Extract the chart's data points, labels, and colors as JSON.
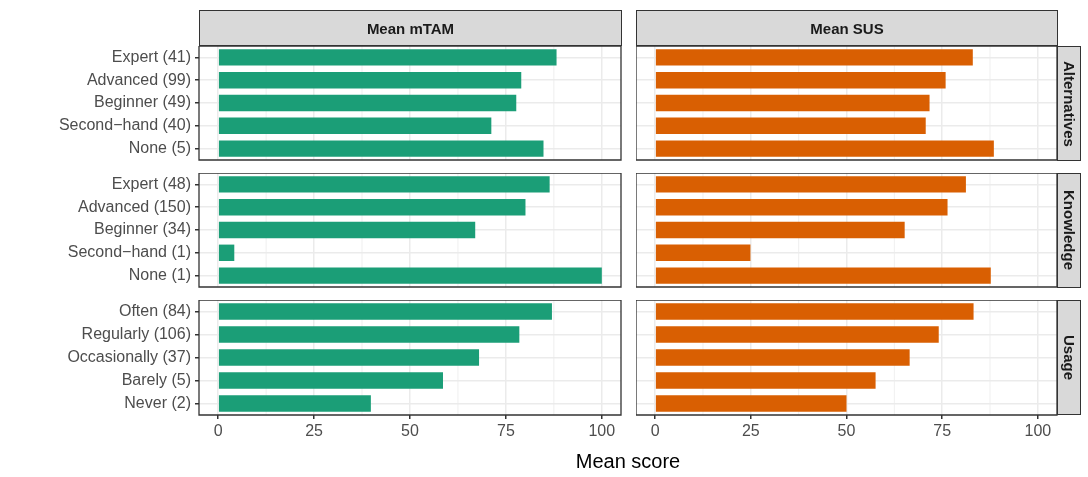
{
  "chart_data": [
    {
      "type": "bar",
      "orientation": "horizontal",
      "title": "Mean mTAM",
      "categories": [
        "Expert (41)",
        "Advanced (99)",
        "Beginner (49)",
        "Second−hand (40)",
        "None (5)"
      ],
      "values": [
        88.2,
        79,
        77.7,
        71.2,
        84.8
      ],
      "color": "#1b9e77",
      "xlim": [
        -5,
        105
      ],
      "xticks": [
        0,
        25,
        50,
        75,
        100
      ],
      "grid": true,
      "tick_labels": "y"
    },
    {
      "type": "bar",
      "orientation": "horizontal",
      "title": "Mean SUS",
      "y2label": "Alternatives",
      "categories": [
        "Expert (41)",
        "Advanced (99)",
        "Beginner (49)",
        "Second−hand (40)",
        "None (5)"
      ],
      "values": [
        83,
        75.9,
        71.7,
        70.7,
        88.5
      ],
      "color": "#d95f02",
      "xlim": [
        -5,
        105
      ],
      "xticks": [
        0,
        25,
        50,
        75,
        100
      ],
      "grid": true,
      "tick_labels": false
    },
    {
      "type": "bar",
      "orientation": "horizontal",
      "categories": [
        "Expert (48)",
        "Advanced (150)",
        "Beginner (34)",
        "Second−hand (1)",
        "None (1)"
      ],
      "values": [
        86.4,
        80.1,
        67,
        4.2,
        100
      ],
      "color": "#1b9e77",
      "xlim": [
        -5,
        105
      ],
      "xticks": [
        0,
        25,
        50,
        75,
        100
      ],
      "grid": true,
      "tick_labels": "y"
    },
    {
      "type": "bar",
      "orientation": "horizontal",
      "y2label": "Knowledge",
      "categories": [
        "Expert (48)",
        "Advanced (150)",
        "Beginner (34)",
        "Second−hand (1)",
        "None (1)"
      ],
      "values": [
        81.2,
        76.4,
        65.2,
        24.9,
        87.7
      ],
      "color": "#d95f02",
      "xlim": [
        -5,
        105
      ],
      "xticks": [
        0,
        25,
        50,
        75,
        100
      ],
      "grid": true,
      "tick_labels": false
    },
    {
      "type": "bar",
      "orientation": "horizontal",
      "xlabel": "Mean score",
      "categories": [
        "Often (84)",
        "Regularly (106)",
        "Occasionally (37)",
        "Barely (5)",
        "Never (2)"
      ],
      "values": [
        87,
        78.5,
        68,
        58.6,
        39.8
      ],
      "color": "#1b9e77",
      "xlim": [
        -5,
        105
      ],
      "xticks": [
        0,
        25,
        50,
        75,
        100
      ],
      "grid": true
    },
    {
      "type": "bar",
      "orientation": "horizontal",
      "y2label": "Usage",
      "categories": [
        "Often (84)",
        "Regularly (106)",
        "Occasionally (37)",
        "Barely (5)",
        "Never (2)"
      ],
      "values": [
        83.2,
        74.1,
        66.5,
        57.6,
        50
      ],
      "color": "#d95f02",
      "xlim": [
        -5,
        105
      ],
      "xticks": [
        0,
        25,
        50,
        75,
        100
      ],
      "grid": true,
      "tick_labels": "x"
    }
  ]
}
